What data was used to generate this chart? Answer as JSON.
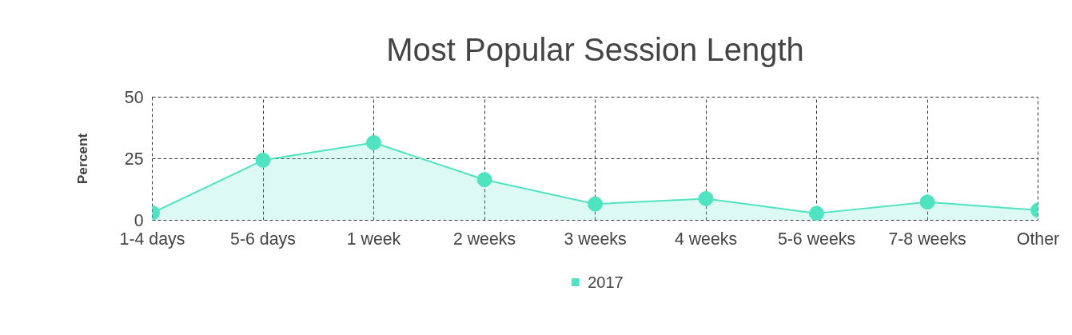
{
  "chart_data": {
    "type": "area",
    "title": "Most Popular Session Length",
    "ylabel": "Percent",
    "categories": [
      "1-4 days",
      "5-6 days",
      "1 week",
      "2 weeks",
      "3 weeks",
      "4 weeks",
      "5-6 weeks",
      "7-8 weeks",
      "Other"
    ],
    "series": [
      {
        "name": "2017",
        "color": "#50e3c2",
        "values": [
          3,
          24.4,
          31.5,
          16.5,
          6.6,
          8.8,
          2.8,
          7.4,
          4.1
        ]
      }
    ],
    "ylim": [
      0,
      50
    ],
    "yticks": [
      0,
      25,
      50
    ],
    "grid": true,
    "legend": "bottom",
    "marker": "circle",
    "line_style": "solid"
  }
}
